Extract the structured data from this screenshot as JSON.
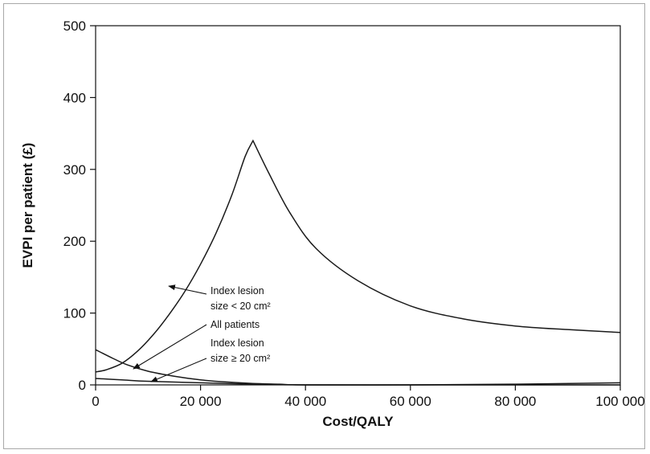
{
  "chart_data": {
    "type": "line",
    "title": "",
    "xlabel": "Cost/QALY",
    "ylabel": "EVPI per patient (£)",
    "xlim": [
      0,
      100000
    ],
    "ylim": [
      0,
      500
    ],
    "x_ticks": [
      0,
      20000,
      40000,
      60000,
      80000,
      100000
    ],
    "x_tick_labels": [
      "0",
      "20 000",
      "40 000",
      "60 000",
      "80 000",
      "100 000"
    ],
    "y_ticks": [
      0,
      100,
      200,
      300,
      400,
      500
    ],
    "y_tick_labels": [
      "0",
      "100",
      "200",
      "300",
      "400",
      "500"
    ],
    "grid": false,
    "series": [
      {
        "name": "Index lesion size < 20 cm²",
        "x": [
          0,
          2000,
          5000,
          8000,
          11000,
          14000,
          17000,
          20000,
          23000,
          26000,
          28500,
          30000,
          33000,
          37000,
          42000,
          50000,
          60000,
          70000,
          80000,
          90000,
          100000
        ],
        "y": [
          18,
          21,
          30,
          47,
          70,
          98,
          130,
          168,
          212,
          265,
          318,
          340,
          295,
          240,
          190,
          145,
          110,
          92,
          82,
          77,
          73
        ]
      },
      {
        "name": "All patients",
        "x": [
          0,
          3000,
          6000,
          10000,
          15000,
          20000,
          25000,
          30000,
          35000,
          40000,
          60000,
          80000,
          100000
        ],
        "y": [
          49,
          38,
          28,
          19,
          12,
          7,
          4,
          2,
          1,
          0,
          0,
          0,
          0
        ]
      },
      {
        "name": "Index lesion size ≥ 20 cm²",
        "x": [
          0,
          5000,
          10000,
          20000,
          30000,
          40000,
          60000,
          80000,
          100000
        ],
        "y": [
          9,
          7,
          5,
          3,
          1,
          0,
          0,
          1,
          3
        ]
      }
    ],
    "annotations": [
      {
        "lines": [
          "Index lesion",
          "size < 20 cm²"
        ]
      },
      {
        "lines": [
          "All patients"
        ]
      },
      {
        "lines": [
          "Index lesion",
          "size ≥ 20 cm²"
        ]
      }
    ]
  }
}
